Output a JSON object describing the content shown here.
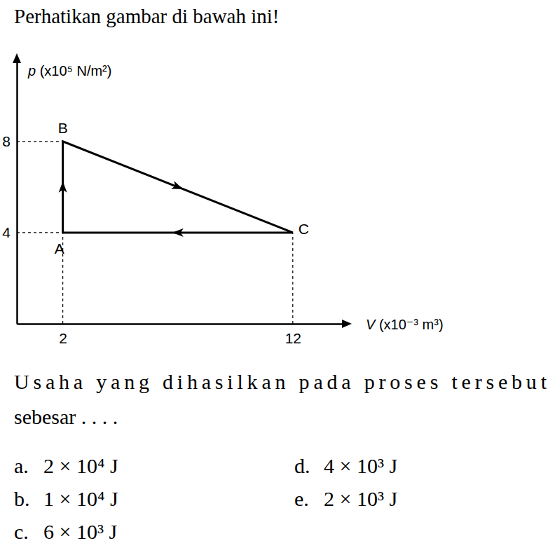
{
  "title_text": "Perhatikan gambar di bawah ini!",
  "chart_data": {
    "type": "line",
    "x": [
      2,
      2,
      12,
      2
    ],
    "values": [
      4,
      8,
      4,
      4
    ],
    "color": "#000000",
    "xlabel": "V (x10⁻³ m³)",
    "ylabel": "p (x10⁵ N/m²)",
    "xlim": [
      0,
      14.2
    ],
    "ylim": [
      0,
      11.5
    ],
    "xticks": [
      2,
      12
    ],
    "yticks": [
      4,
      8
    ],
    "annotations": [
      {
        "text": "A",
        "x": 2,
        "y": 4
      },
      {
        "text": "B",
        "x": 2,
        "y": 8
      },
      {
        "text": "C",
        "x": 12,
        "y": 4
      }
    ]
  },
  "question": [
    "Usaha yang dihasilkan pada proses tersebut",
    "sebesar . . . ."
  ],
  "options": [
    {
      "letter": "a.",
      "text": "2 × 10⁴ J"
    },
    {
      "letter": "b.",
      "text": "1 × 10⁴ J"
    },
    {
      "letter": "c.",
      "text": "6 × 10³ J"
    },
    {
      "letter": "d.",
      "text": "4 × 10³ J"
    },
    {
      "letter": "e.",
      "text": "2 × 10³ J"
    }
  ]
}
